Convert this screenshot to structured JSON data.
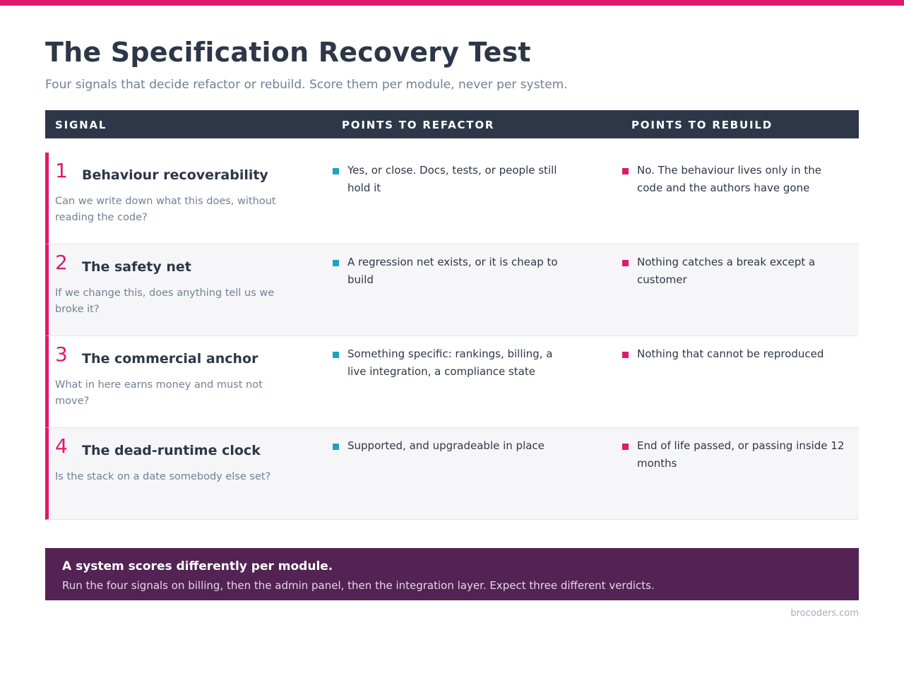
{
  "title": "The Specification Recovery Test",
  "subtitle": "Four signals that decide refactor or rebuild. Score them per module, never per system.",
  "colors": {
    "accent": "#e0196b",
    "header_bg": "#2d3748",
    "refactor_bullet": "#1aa3c4",
    "rebuild_bullet": "#e0196b",
    "callout_bg": "#532353"
  },
  "table": {
    "headers": [
      "SIGNAL",
      "POINTS TO REFACTOR",
      "POINTS TO REBUILD"
    ],
    "rows": [
      {
        "number": "1",
        "title": "Behaviour recoverability",
        "question": "Can we write down what this does, without reading the code?",
        "refactor": "Yes, or close. Docs, tests, or people still hold it",
        "rebuild": "No. The behaviour lives only in the code and the authors have gone"
      },
      {
        "number": "2",
        "title": "The safety net",
        "question": "If we change this, does anything tell us we broke it?",
        "refactor": "A regression net exists, or it is cheap to build",
        "rebuild": "Nothing catches a break except a customer"
      },
      {
        "number": "3",
        "title": "The commercial anchor",
        "question": "What in here earns money and must not move?",
        "refactor": "Something specific: rankings, billing, a live integration, a compliance state",
        "rebuild": "Nothing that cannot be reproduced"
      },
      {
        "number": "4",
        "title": "The dead-runtime clock",
        "question": "Is the stack on a date somebody else set?",
        "refactor": "Supported, and upgradeable in place",
        "rebuild": "End of life passed, or passing inside 12 months"
      }
    ]
  },
  "callout": {
    "title": "A system scores differently per module.",
    "body": "Run the four signals on billing, then the admin panel, then the integration layer. Expect three different verdicts."
  },
  "footer": "brocoders.com"
}
